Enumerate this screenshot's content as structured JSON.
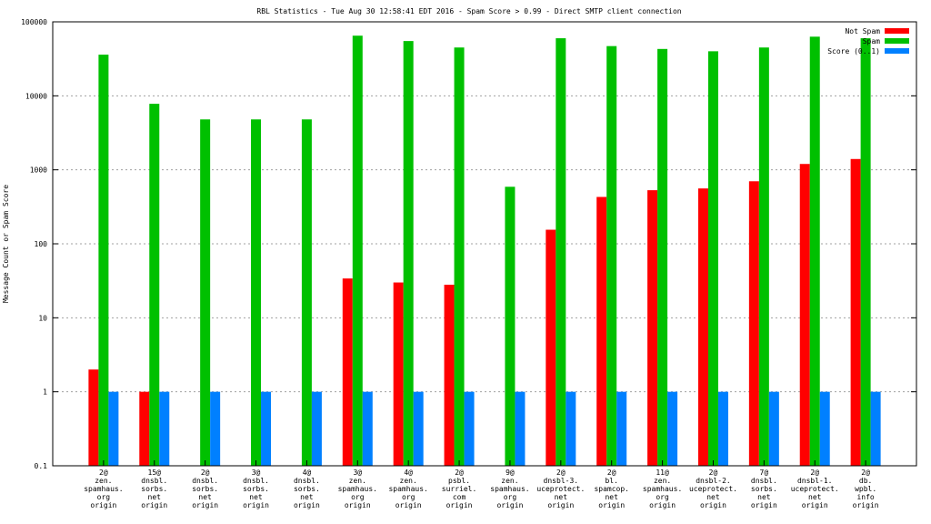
{
  "chart_data": {
    "type": "bar",
    "title": "RBL Statistics - Tue Aug 30 12:58:41 EDT 2016 - Spam Score > 0.99 - Direct SMTP client connection",
    "ylabel": "Message Count or Spam Score",
    "xlabel": "",
    "yscale": "log",
    "ylim": [
      0.1,
      100000
    ],
    "yticks": [
      "0.1",
      "1",
      "10",
      "100",
      "1000",
      "10000",
      "100000"
    ],
    "grid": true,
    "legend_position": "top-right",
    "categories": [
      [
        "2@",
        "zen.",
        "spamhaus.",
        "org",
        "origin"
      ],
      [
        "15@",
        "dnsbl.",
        "sorbs.",
        "net",
        "origin"
      ],
      [
        "2@",
        "dnsbl.",
        "sorbs.",
        "net",
        "origin"
      ],
      [
        "3@",
        "dnsbl.",
        "sorbs.",
        "net",
        "origin"
      ],
      [
        "4@",
        "dnsbl.",
        "sorbs.",
        "net",
        "origin"
      ],
      [
        "3@",
        "zen.",
        "spamhaus.",
        "org",
        "origin"
      ],
      [
        "4@",
        "zen.",
        "spamhaus.",
        "org",
        "origin"
      ],
      [
        "2@",
        "psbl.",
        "surriel.",
        "com",
        "origin"
      ],
      [
        "9@",
        "zen.",
        "spamhaus.",
        "org",
        "origin"
      ],
      [
        "2@",
        "dnsbl-3.",
        "uceprotect.",
        "net",
        "origin"
      ],
      [
        "2@",
        "bl.",
        "spamcop.",
        "net",
        "origin"
      ],
      [
        "11@",
        "zen.",
        "spamhaus.",
        "org",
        "origin"
      ],
      [
        "2@",
        "dnsbl-2.",
        "uceprotect.",
        "net",
        "origin"
      ],
      [
        "7@",
        "dnsbl.",
        "sorbs.",
        "net",
        "origin"
      ],
      [
        "2@",
        "dnsbl-1.",
        "uceprotect.",
        "net",
        "origin"
      ],
      [
        "2@",
        "db.",
        "wpbl.",
        "info",
        "origin"
      ]
    ],
    "series": [
      {
        "name": "Not Spam",
        "color": "#ff0000",
        "values": [
          2,
          1,
          null,
          null,
          null,
          34,
          30,
          28,
          null,
          155,
          430,
          530,
          560,
          700,
          1200,
          1400
        ]
      },
      {
        "name": "Spam",
        "color": "#00c000",
        "values": [
          36000,
          7800,
          4800,
          4800,
          4800,
          65000,
          55000,
          45000,
          590,
          60000,
          47000,
          43000,
          40000,
          45000,
          63000,
          60000
        ]
      },
      {
        "name": "Score (0..1)",
        "color": "#0080ff",
        "values": [
          1,
          1,
          1,
          1,
          1,
          1,
          1,
          1,
          1,
          1,
          1,
          1,
          1,
          1,
          1,
          1
        ]
      }
    ]
  }
}
